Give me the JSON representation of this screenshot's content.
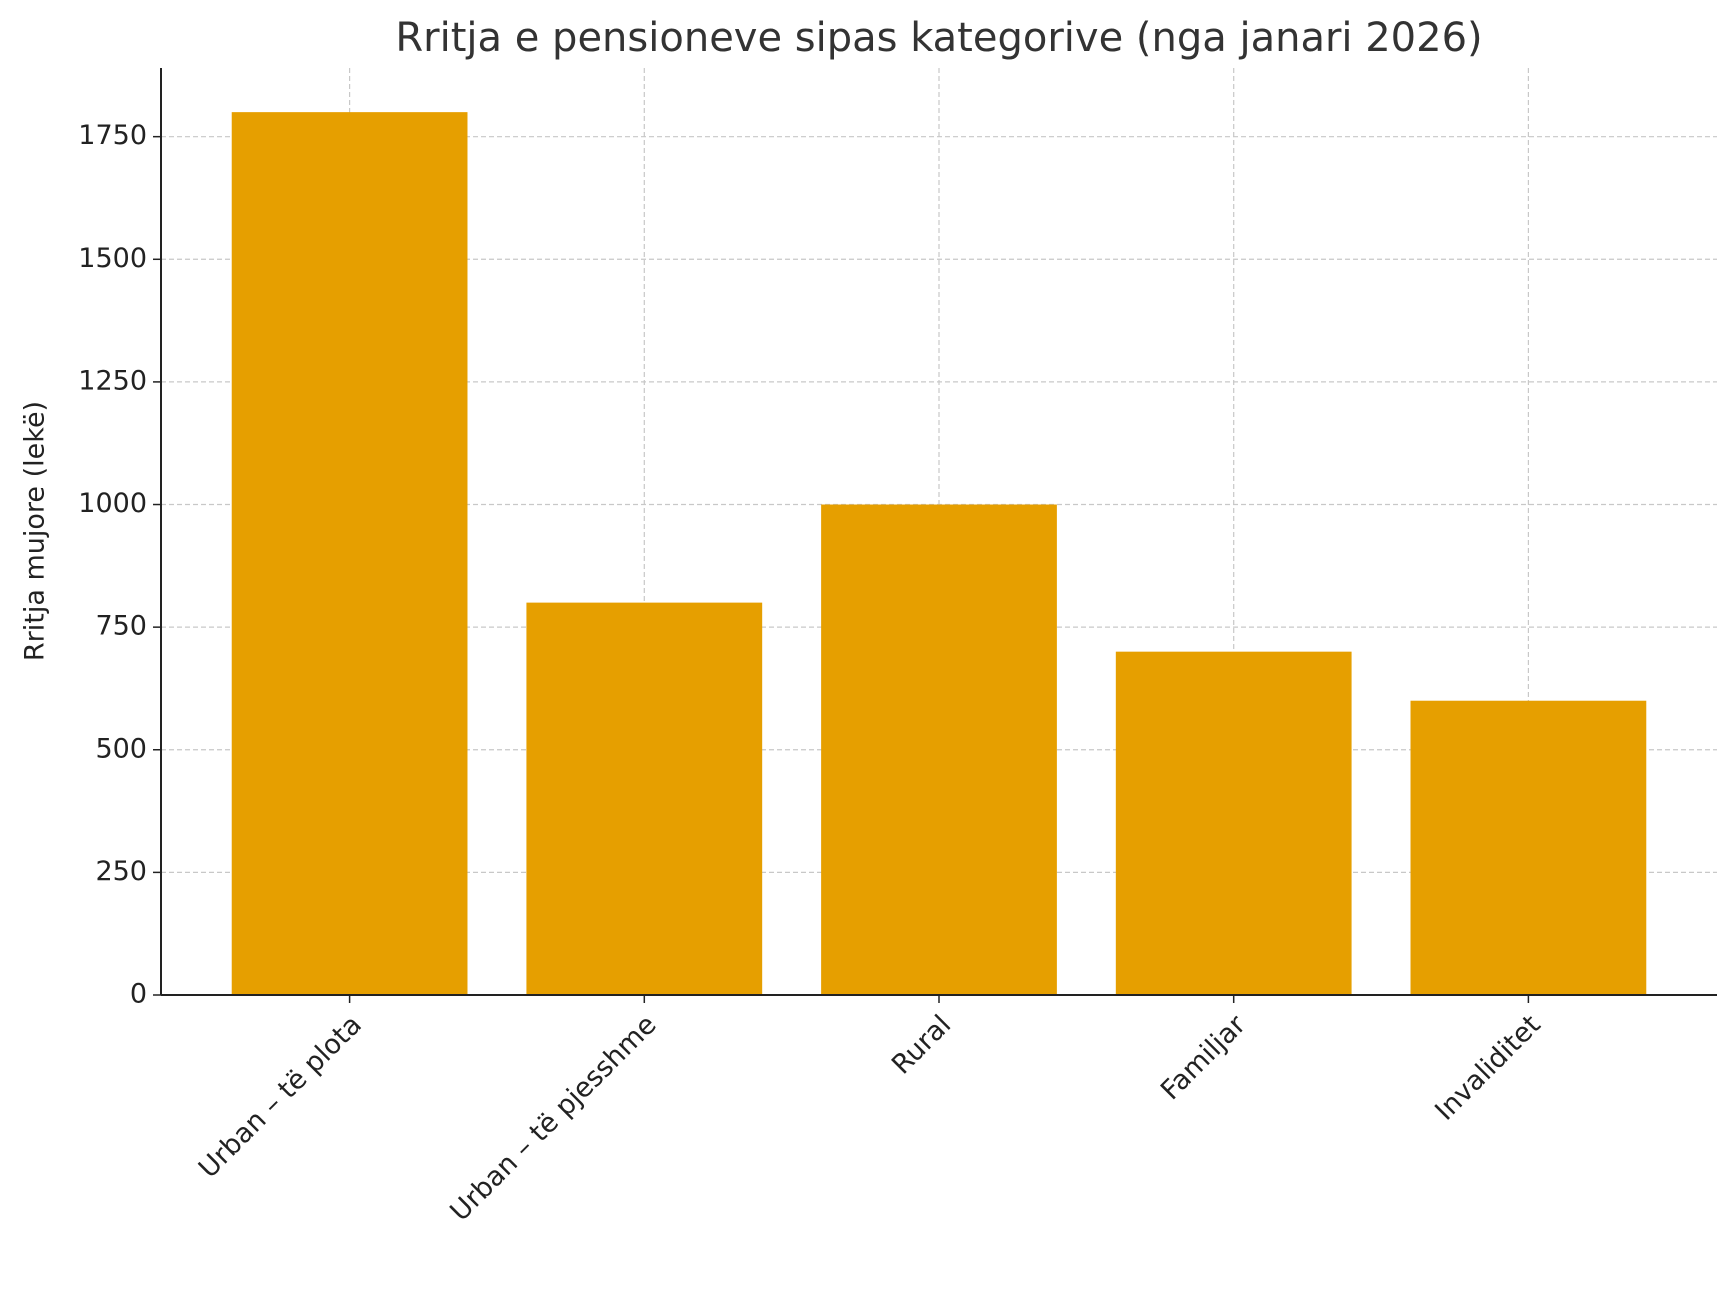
{
  "chart_data": {
    "type": "bar",
    "title": "Rritja e pensioneve sipas kategorive (nga janari 2026)",
    "y_label": "Rritja mujore (lekë)",
    "categories": [
      "Urban – të plota",
      "Urban – të pjesshme",
      "Rural",
      "Familjar",
      "Invaliditet"
    ],
    "values": [
      1800,
      800,
      1000,
      700,
      600
    ],
    "color": "#e69f00",
    "ylim": [
      0,
      1890
    ],
    "yticks": [
      0,
      250,
      500,
      750,
      1000,
      1250,
      1500,
      1750
    ],
    "grid": true
  }
}
